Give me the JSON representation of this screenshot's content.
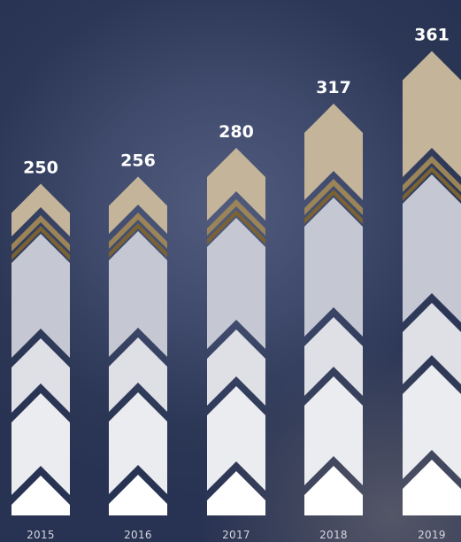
{
  "chart_data": {
    "type": "bar",
    "categories": [
      "2015",
      "2016",
      "2017",
      "2018",
      "2019"
    ],
    "values": [
      250,
      256,
      280,
      317,
      361
    ],
    "title": "",
    "xlabel": "",
    "ylabel": "",
    "grid": false,
    "legend": "none",
    "colors": {
      "top": "#c3b49a",
      "chevron_gold": "#9a8458",
      "chevron_dark_gold": "#7a6232",
      "middle_grey": "#c5c8d3",
      "light_grey": "#dfe0e6",
      "lighter_grey": "#ebecef",
      "base_white": "#ffffff"
    }
  }
}
